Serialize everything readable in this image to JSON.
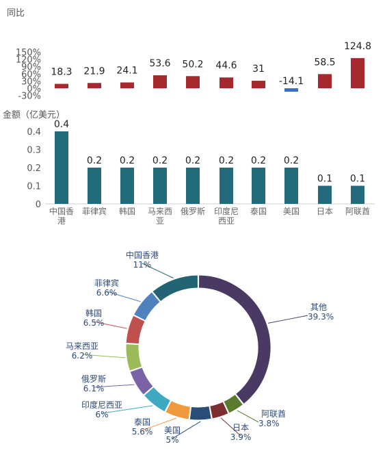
{
  "chart_data": [
    {
      "type": "bar",
      "ylabel": "同比",
      "ylim": [
        -30,
        150
      ],
      "yticks": [
        "150%",
        "120%",
        "90%",
        "60%",
        "30%",
        "0%",
        "-30%"
      ],
      "ytick_values": [
        150,
        120,
        90,
        60,
        30,
        0,
        -30
      ],
      "categories": [
        "中国香港",
        "菲律宾",
        "韩国",
        "马来西亚",
        "俄罗斯",
        "印度尼西亚",
        "泰国",
        "美国",
        "日本",
        "阿联酋"
      ],
      "values": [
        18.3,
        21.9,
        24.1,
        53.6,
        50.2,
        44.6,
        31,
        -14.1,
        58.5,
        124.8
      ],
      "value_labels": [
        "18.3",
        "21.9",
        "24.1",
        "53.6",
        "50.2",
        "44.6",
        "31",
        "-14.1",
        "58.5",
        "124.8"
      ],
      "colors": {
        "positive": "#a62a2d",
        "negative": "#3a6fbf"
      }
    },
    {
      "type": "bar",
      "ylabel": "金额（亿美元）",
      "ylim": [
        0,
        0.45
      ],
      "yticks": [
        "0.4",
        "0.3",
        "0.2",
        "0.1",
        "0"
      ],
      "ytick_values": [
        0.4,
        0.3,
        0.2,
        0.1,
        0
      ],
      "categories": [
        "中国香港",
        "菲律宾",
        "韩国",
        "马来西亚",
        "俄罗斯",
        "印度尼西亚",
        "泰国",
        "美国",
        "日本",
        "阿联酋"
      ],
      "category_labels": [
        [
          "中国香",
          "港"
        ],
        [
          "菲律宾"
        ],
        [
          "韩国"
        ],
        [
          "马来西",
          "亚"
        ],
        [
          "俄罗斯"
        ],
        [
          "印度尼",
          "西亚"
        ],
        [
          "泰国"
        ],
        [
          "美国"
        ],
        [
          "日本"
        ],
        [
          "阿联酋"
        ]
      ],
      "values": [
        0.4,
        0.2,
        0.2,
        0.2,
        0.2,
        0.2,
        0.2,
        0.2,
        0.1,
        0.1
      ],
      "value_labels": [
        "0.4",
        "0.2",
        "0.2",
        "0.2",
        "0.2",
        "0.2",
        "0.2",
        "0.2",
        "0.1",
        "0.1"
      ],
      "colors": {
        "bar": "#236a7a"
      }
    },
    {
      "type": "pie",
      "donut": true,
      "categories": [
        "其他",
        "阿联酋",
        "日本",
        "美国",
        "泰国",
        "印度尼西亚",
        "俄罗斯",
        "马来西亚",
        "韩国",
        "菲律宾",
        "中国香港"
      ],
      "values": [
        39.3,
        3.8,
        3.9,
        5,
        5.6,
        6,
        6.1,
        6.2,
        6.5,
        6.6,
        11
      ],
      "value_labels": [
        "39.3%",
        "3.8%",
        "3.9%",
        "5%",
        "5.6%",
        "6%",
        "6.1%",
        "6.2%",
        "6.5%",
        "6.6%",
        "11%"
      ],
      "colors": [
        "#4a3a63",
        "#5a7a2e",
        "#7d2e2e",
        "#2a4d78",
        "#f09a3e",
        "#3fa9c2",
        "#7b62a6",
        "#9bbb59",
        "#c0504d",
        "#4f81bd",
        "#226474"
      ]
    }
  ]
}
